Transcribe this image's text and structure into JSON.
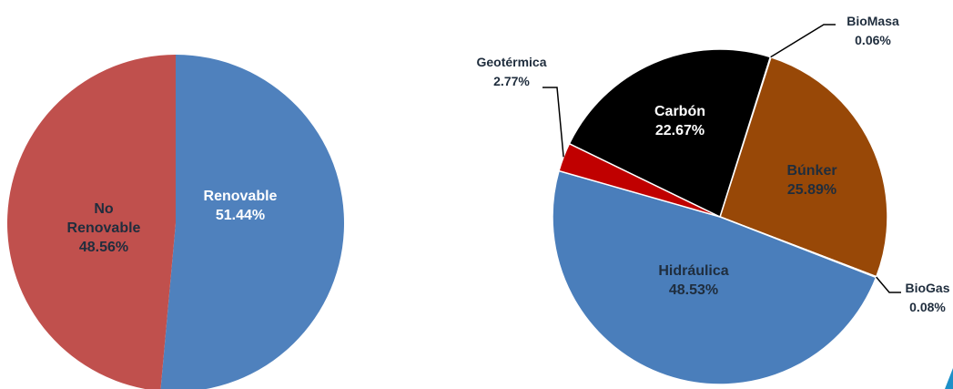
{
  "chart_data": [
    {
      "type": "pie",
      "title": "",
      "slices": [
        {
          "label": "Renovable",
          "value": 51.44,
          "value_text": "51.44%",
          "color": "#4F81BD"
        },
        {
          "label": "No Renovable",
          "value": 48.56,
          "value_text": "48.56%",
          "color": "#C0504D",
          "label_lines": [
            "No",
            "Renovable"
          ]
        }
      ]
    },
    {
      "type": "pie",
      "title": "",
      "slices": [
        {
          "label": "BioMasa",
          "value": 0.06,
          "value_text": "0.06%",
          "color": "#F79646"
        },
        {
          "label": "Búnker",
          "value": 25.89,
          "value_text": "25.89%",
          "color": "#984807"
        },
        {
          "label": "BioGas",
          "value": 0.08,
          "value_text": "0.08%",
          "color": "#9BBB59"
        },
        {
          "label": "Hidráulica",
          "value": 48.53,
          "value_text": "48.53%",
          "color": "#4A7EBB"
        },
        {
          "label": "Geotérmica",
          "value": 2.77,
          "value_text": "2.77%",
          "color": "#C00000"
        },
        {
          "label": "Carbón",
          "value": 22.67,
          "value_text": "22.67%",
          "color": "#000000"
        }
      ]
    }
  ],
  "colors": {
    "label_dark": "#1F2D3D",
    "label_light": "#ffffff",
    "corner_accent": "#1E90C8"
  }
}
